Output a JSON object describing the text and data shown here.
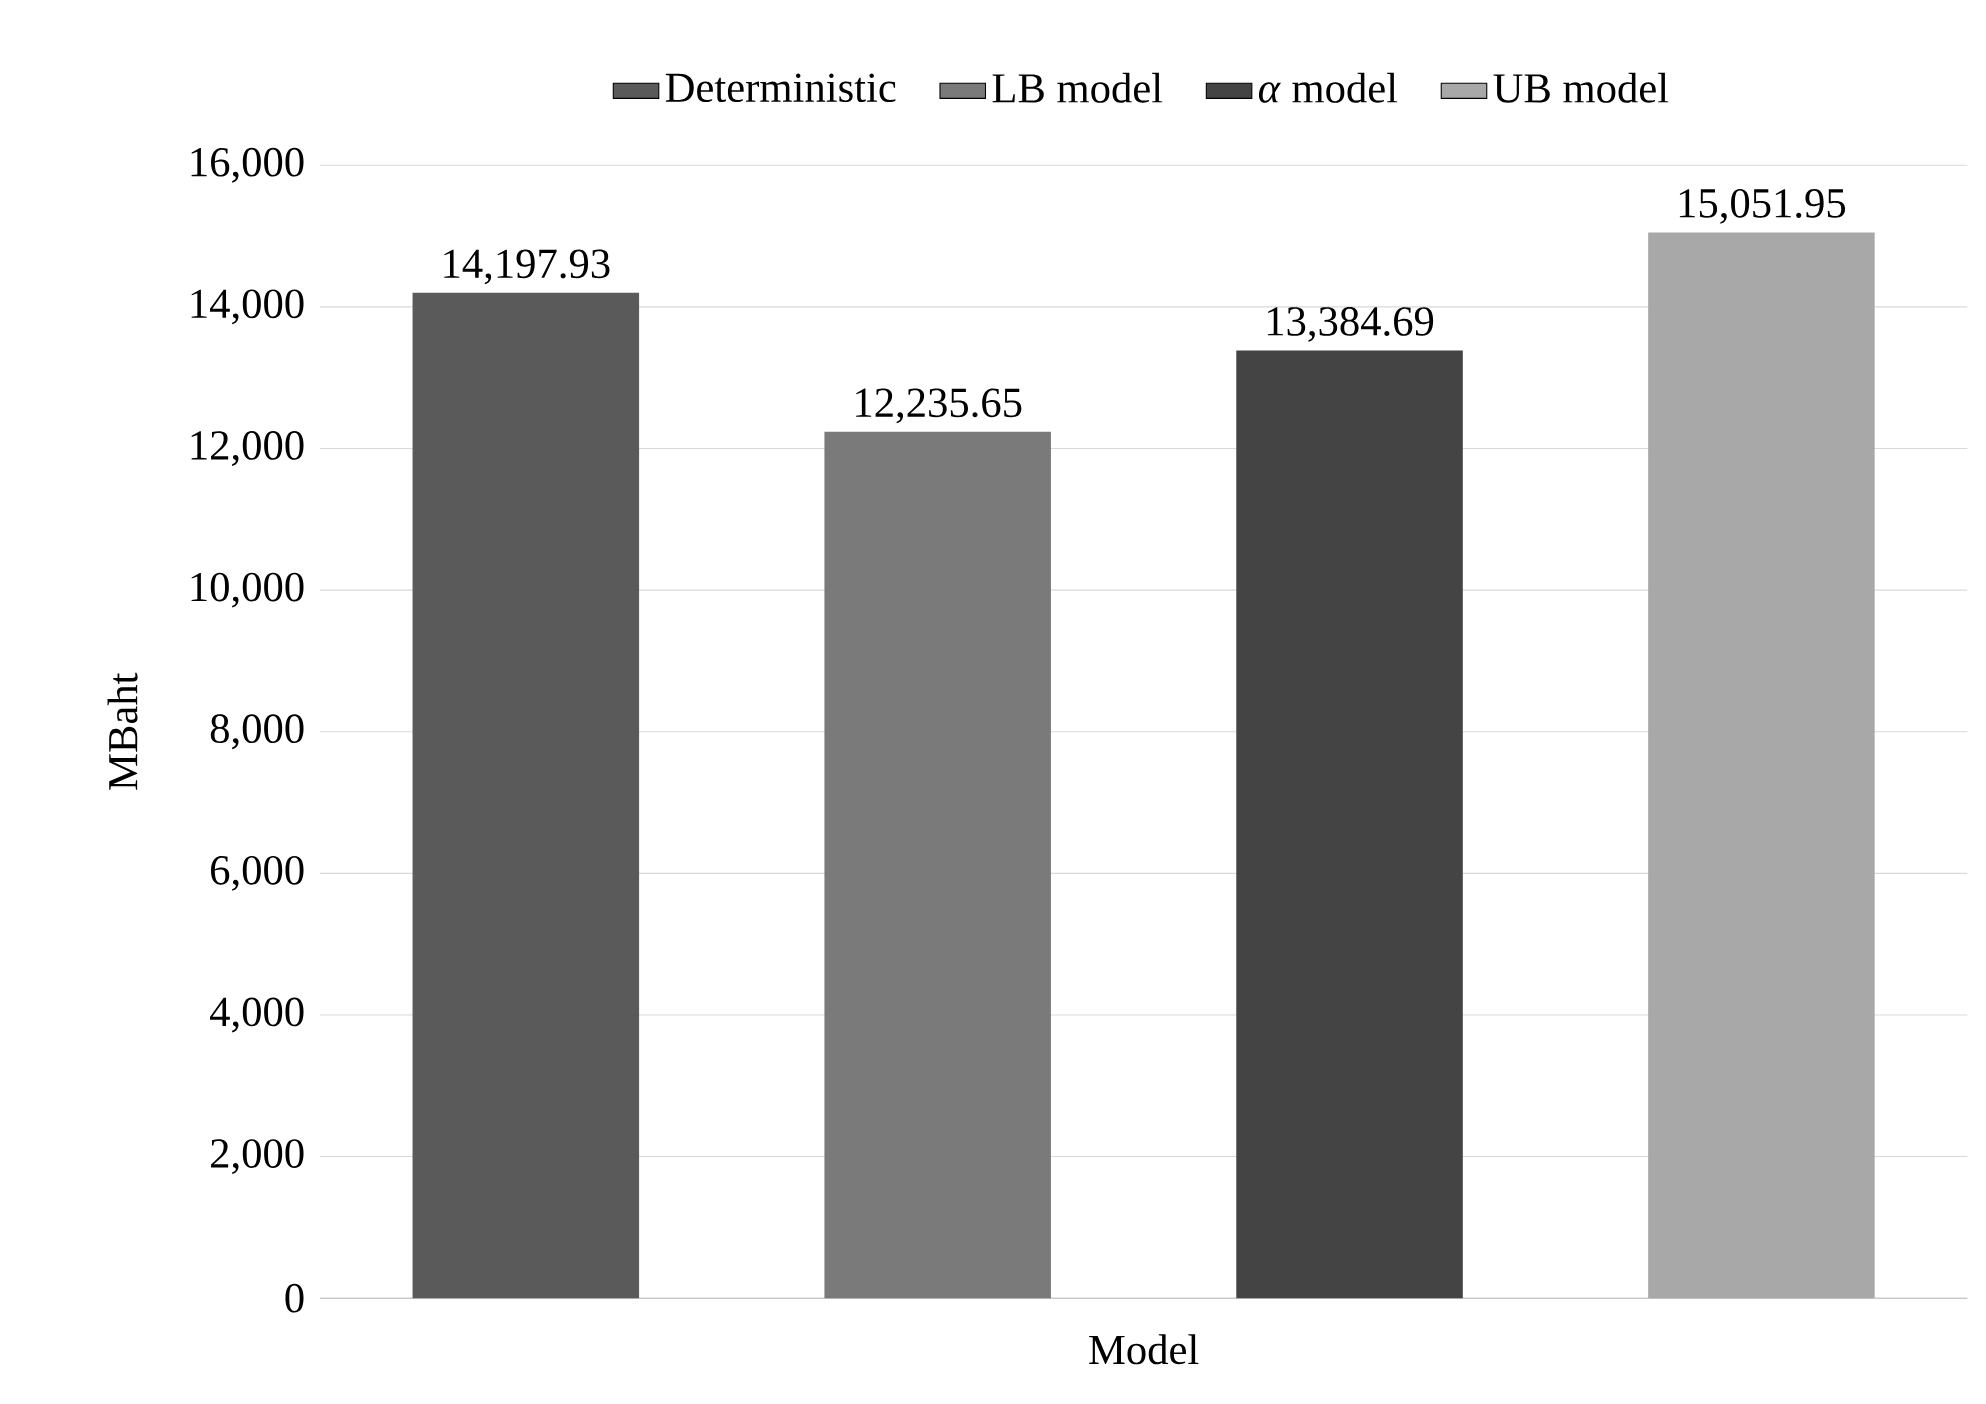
{
  "chart_data": {
    "type": "bar",
    "xlabel": "Model",
    "ylabel": "MBaht",
    "categories": [
      null
    ],
    "series": [
      {
        "name": "Deterministic",
        "color": "#5a5a5a",
        "values": [
          14197.93
        ],
        "value_labels": [
          "14,197.93"
        ]
      },
      {
        "name": "LB model",
        "color": "#7a7a7a",
        "values": [
          12235.65
        ],
        "value_labels": [
          "12,235.65"
        ]
      },
      {
        "name": "*α* model",
        "color": "#444444",
        "values": [
          13384.69
        ],
        "value_labels": [
          "13,384.69"
        ]
      },
      {
        "name": "UB model",
        "color": "#a8a8a8",
        "values": [
          15051.95
        ],
        "value_labels": [
          "15,051.95"
        ]
      }
    ],
    "ylim": [
      0,
      16000
    ],
    "yticks": [
      0,
      {
        "value": 2000,
        "label": "2,000"
      },
      {
        "value": 4000,
        "label": "4,000"
      },
      {
        "value": 6000,
        "label": "6,000"
      },
      {
        "value": 8000,
        "label": "8,000"
      },
      {
        "value": 10000,
        "label": "10,000"
      },
      {
        "value": 12000,
        "label": "12,000"
      },
      {
        "value": 14000,
        "label": "14,000"
      },
      {
        "value": 16000,
        "label": "16,000"
      }
    ],
    "grid": "y",
    "legend": "top"
  }
}
